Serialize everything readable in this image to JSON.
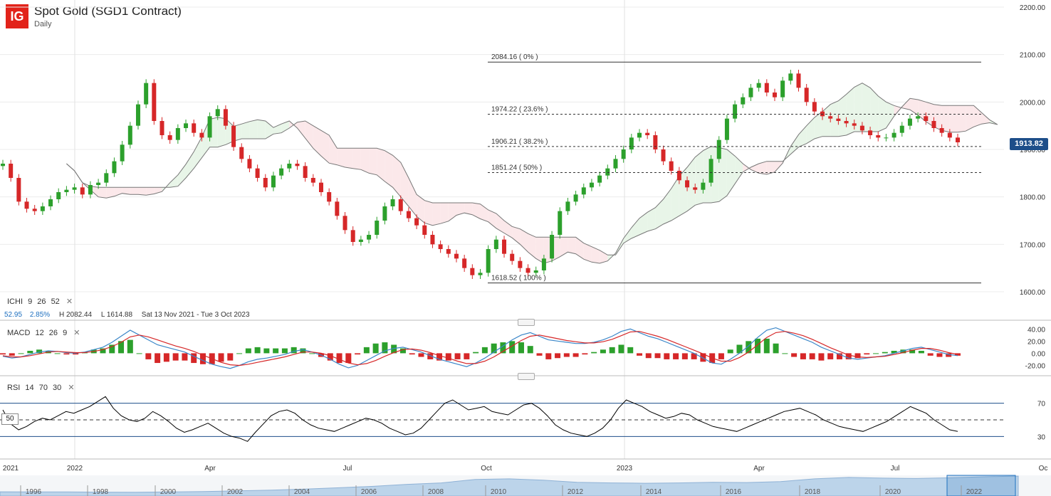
{
  "header": {
    "logo_text": "IG",
    "title": "Spot Gold (SGD1 Contract)",
    "subtitle": "Daily",
    "brand_color": "#e2231a"
  },
  "price_badge": "1913.82",
  "ichimoku_bar": {
    "name": "ICHI",
    "params": [
      "9",
      "26",
      "52"
    ],
    "close_icon": "close-icon",
    "last": "52.95",
    "change": "2.85%",
    "high": "H 2082.44",
    "low": "L 1614.88",
    "range": "Sat 13 Nov 2021 - Tue 3 Oct 2023"
  },
  "macd_bar": {
    "name": "MACD",
    "params": [
      "12",
      "26",
      "9"
    ],
    "close_icon": "close-icon"
  },
  "rsi_bar": {
    "name": "RSI",
    "params": [
      "14",
      "70",
      "30"
    ],
    "close_icon": "close-icon"
  },
  "rsi_badge": "50",
  "colors": {
    "up": "#2ca02c",
    "down": "#d62728",
    "kumo_bull": "#e8f5e8",
    "kumo_bear": "#fbe8ea",
    "macd_line": "#3a86c8",
    "signal_line": "#d62728",
    "rsi_line": "#000000",
    "navigator": "#bcd4ea"
  },
  "chart_data": [
    {
      "type": "candlestick",
      "title": "Spot Gold (SGD1 Contract)",
      "interval": "Daily",
      "ylim": [
        1600,
        2200
      ],
      "y_ticks": [
        "1600.00",
        "1700.00",
        "1800.00",
        "1900.00",
        "2000.00",
        "2100.00",
        "2200.00"
      ],
      "x_ticks": [
        "2021",
        "2022",
        "Apr",
        "Jul",
        "Oct",
        "2023",
        "Apr",
        "Jul",
        "Oc"
      ],
      "last_price": 1913.82,
      "fibonacci": [
        {
          "label": "2084.16 ( 0% )",
          "value": 2084.16,
          "style": "solid"
        },
        {
          "label": "1974.22 ( 23.6% )",
          "value": 1974.22,
          "style": "dashed"
        },
        {
          "label": "1906.21 ( 38.2% )",
          "value": 1906.21,
          "style": "dashed"
        },
        {
          "label": "1851.24 ( 50% )",
          "value": 1851.24,
          "style": "dashed"
        },
        {
          "label": "1618.52 ( 100% )",
          "value": 1618.52,
          "style": "solid"
        }
      ],
      "close_series": [
        1870,
        1840,
        1790,
        1775,
        1770,
        1780,
        1795,
        1810,
        1815,
        1820,
        1805,
        1825,
        1830,
        1850,
        1875,
        1910,
        1950,
        1995,
        2040,
        1960,
        1930,
        1920,
        1945,
        1955,
        1935,
        1925,
        1970,
        1985,
        1950,
        1905,
        1880,
        1860,
        1840,
        1820,
        1845,
        1860,
        1870,
        1865,
        1840,
        1830,
        1810,
        1790,
        1760,
        1730,
        1705,
        1710,
        1720,
        1750,
        1780,
        1795,
        1770,
        1755,
        1740,
        1720,
        1700,
        1690,
        1680,
        1670,
        1650,
        1635,
        1640,
        1690,
        1710,
        1680,
        1665,
        1650,
        1640,
        1645,
        1670,
        1720,
        1770,
        1790,
        1805,
        1820,
        1830,
        1845,
        1860,
        1880,
        1900,
        1925,
        1935,
        1930,
        1900,
        1875,
        1855,
        1835,
        1820,
        1815,
        1830,
        1880,
        1920,
        1965,
        1995,
        2010,
        2030,
        2040,
        2020,
        2010,
        2045,
        2060,
        2030,
        2000,
        1980,
        1970,
        1965,
        1960,
        1955,
        1950,
        1940,
        1930,
        1925,
        1925,
        1935,
        1950,
        1965,
        1970,
        1960,
        1945,
        1935,
        1925,
        1915
      ]
    },
    {
      "type": "line",
      "name": "MACD",
      "ylim": [
        -30,
        45
      ],
      "y_ticks": [
        "40.00",
        "20.00",
        "0.00",
        "-20.00"
      ],
      "macd": [
        -5,
        -8,
        -6,
        -2,
        2,
        4,
        3,
        1,
        0,
        2,
        6,
        10,
        18,
        28,
        38,
        30,
        22,
        14,
        10,
        6,
        2,
        -5,
        -12,
        -18,
        -22,
        -25,
        -20,
        -14,
        -10,
        -8,
        -5,
        -2,
        3,
        6,
        2,
        -3,
        -10,
        -18,
        -24,
        -20,
        -12,
        -4,
        4,
        8,
        10,
        6,
        2,
        -4,
        -10,
        -14,
        -18,
        -22,
        -16,
        -8,
        2,
        12,
        22,
        30,
        34,
        28,
        22,
        20,
        18,
        16,
        16,
        18,
        22,
        28,
        36,
        40,
        34,
        28,
        24,
        18,
        12,
        6,
        0,
        -8,
        -16,
        -18,
        -10,
        0,
        12,
        26,
        38,
        42,
        36,
        30,
        24,
        18,
        10,
        4,
        -2,
        -8,
        -10,
        -8,
        -6,
        -4,
        0,
        4,
        8,
        10,
        6,
        2,
        -2,
        -4
      ],
      "signal": [
        -4,
        -6,
        -6,
        -4,
        -1,
        2,
        3,
        2,
        1,
        1,
        3,
        6,
        11,
        18,
        27,
        30,
        27,
        22,
        17,
        12,
        8,
        3,
        -3,
        -9,
        -15,
        -19,
        -20,
        -18,
        -15,
        -12,
        -9,
        -6,
        -2,
        2,
        2,
        0,
        -4,
        -10,
        -16,
        -19,
        -17,
        -12,
        -5,
        1,
        6,
        7,
        5,
        1,
        -4,
        -8,
        -13,
        -17,
        -17,
        -13,
        -6,
        3,
        12,
        21,
        28,
        30,
        27,
        24,
        21,
        19,
        17,
        17,
        19,
        23,
        29,
        35,
        36,
        32,
        28,
        23,
        17,
        11,
        5,
        -1,
        -8,
        -13,
        -13,
        -7,
        2,
        14,
        26,
        34,
        36,
        33,
        29,
        23,
        16,
        9,
        3,
        -3,
        -6,
        -7,
        -6,
        -5,
        -2,
        1,
        5,
        8,
        8,
        5,
        1,
        -2
      ]
    },
    {
      "type": "line",
      "name": "RSI",
      "ylim": [
        0,
        100
      ],
      "y_ticks": [
        "70",
        "30"
      ],
      "overbought": 70,
      "oversold": 30,
      "rsi": [
        62,
        45,
        38,
        42,
        48,
        52,
        50,
        55,
        60,
        58,
        62,
        66,
        72,
        78,
        64,
        55,
        50,
        48,
        52,
        60,
        55,
        48,
        40,
        35,
        38,
        42,
        46,
        40,
        34,
        30,
        28,
        24,
        35,
        45,
        55,
        60,
        62,
        58,
        50,
        44,
        40,
        38,
        36,
        40,
        44,
        48,
        52,
        50,
        46,
        40,
        36,
        32,
        34,
        40,
        50,
        60,
        70,
        74,
        68,
        62,
        64,
        66,
        60,
        58,
        56,
        62,
        68,
        70,
        64,
        55,
        44,
        38,
        34,
        32,
        30,
        34,
        40,
        50,
        64,
        74,
        70,
        66,
        60,
        56,
        52,
        54,
        58,
        56,
        50,
        46,
        42,
        40,
        38,
        36,
        40,
        44,
        48,
        52,
        56,
        60,
        62,
        64,
        60,
        56,
        50,
        46,
        42,
        40,
        38,
        36,
        40,
        44,
        48,
        54,
        60,
        66,
        62,
        58,
        50,
        44,
        38,
        36
      ]
    },
    {
      "type": "area",
      "name": "navigator",
      "x_ticks": [
        "1996",
        "1998",
        "2000",
        "2002",
        "2004",
        "2006",
        "2008",
        "2010",
        "2012",
        "2014",
        "2016",
        "2018",
        "2020",
        "2022"
      ],
      "values": [
        400,
        390,
        380,
        350,
        330,
        380,
        450,
        550,
        650,
        800,
        1000,
        1200,
        1500,
        1700,
        2200,
        2300,
        2100,
        1800,
        1700,
        1650,
        1700,
        1800,
        1750,
        1900,
        2300,
        2500,
        2400,
        2350,
        2450,
        2600,
        2700
      ]
    }
  ]
}
